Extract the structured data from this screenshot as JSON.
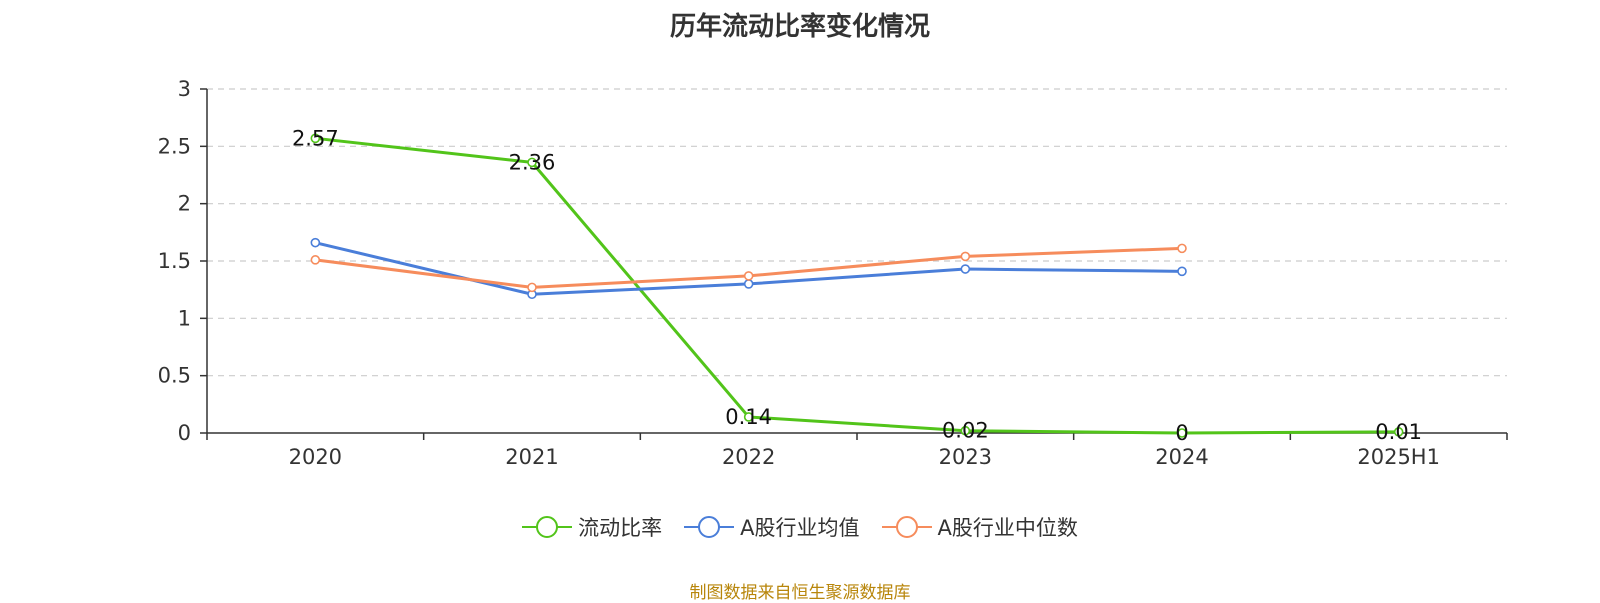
{
  "chart_data": {
    "type": "line",
    "title": "历年流动比率变化情况",
    "categories": [
      "2020",
      "2021",
      "2022",
      "2023",
      "2024",
      "2025H1"
    ],
    "ylim": [
      0,
      3
    ],
    "yticks": [
      0,
      0.5,
      1,
      1.5,
      2,
      2.5,
      3
    ],
    "ytick_labels": [
      "0",
      "0.5",
      "1",
      "1.5",
      "2",
      "2.5",
      "3"
    ],
    "xlabel": "",
    "ylabel": "",
    "grid": true,
    "legend_position": "bottom",
    "series": [
      {
        "name": "流动比率",
        "color": "#52c41a",
        "values": [
          2.57,
          2.36,
          0.14,
          0.02,
          0,
          0.01
        ],
        "labels": [
          "2.57",
          "2.36",
          "0.14",
          "0.02",
          "0",
          "0.01"
        ],
        "show_labels": true
      },
      {
        "name": "A股行业均值",
        "color": "#4a7ed9",
        "values": [
          1.66,
          1.21,
          1.3,
          1.43,
          1.41,
          null
        ],
        "show_labels": false
      },
      {
        "name": "A股行业中位数",
        "color": "#f68c5c",
        "values": [
          1.51,
          1.27,
          1.37,
          1.54,
          1.61,
          null
        ],
        "show_labels": false
      }
    ]
  },
  "source_note": "制图数据来自恒生聚源数据库",
  "source_color": "#b8860b"
}
